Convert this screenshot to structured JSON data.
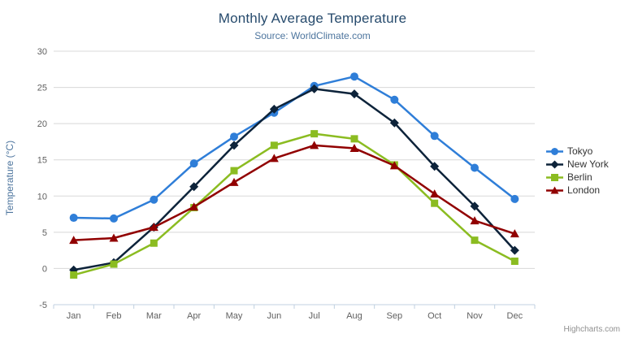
{
  "chart_data": {
    "type": "line",
    "title": "Monthly Average Temperature",
    "subtitle": "Source: WorldClimate.com",
    "xlabel": "",
    "ylabel": "Temperature (°C)",
    "categories": [
      "Jan",
      "Feb",
      "Mar",
      "Apr",
      "May",
      "Jun",
      "Jul",
      "Aug",
      "Sep",
      "Oct",
      "Nov",
      "Dec"
    ],
    "ylim": [
      -5,
      30
    ],
    "yticks": [
      -5,
      0,
      5,
      10,
      15,
      20,
      25,
      30
    ],
    "grid": true,
    "legend_position": "right",
    "series": [
      {
        "name": "Tokyo",
        "color": "#2f7ed8",
        "marker": "circle",
        "values": [
          7.0,
          6.9,
          9.5,
          14.5,
          18.2,
          21.5,
          25.2,
          26.5,
          23.3,
          18.3,
          13.9,
          9.6
        ]
      },
      {
        "name": "New York",
        "color": "#0d233a",
        "marker": "diamond",
        "values": [
          -0.2,
          0.8,
          5.7,
          11.3,
          17.0,
          22.0,
          24.8,
          24.1,
          20.1,
          14.1,
          8.6,
          2.5
        ]
      },
      {
        "name": "Berlin",
        "color": "#8bbc21",
        "marker": "square",
        "values": [
          -0.9,
          0.6,
          3.5,
          8.4,
          13.5,
          17.0,
          18.6,
          17.9,
          14.3,
          9.0,
          3.9,
          1.0
        ]
      },
      {
        "name": "London",
        "color": "#910000",
        "marker": "triangle",
        "values": [
          3.9,
          4.2,
          5.7,
          8.5,
          11.9,
          15.2,
          17.0,
          16.6,
          14.2,
          10.3,
          6.6,
          4.8
        ]
      }
    ],
    "colors": {
      "gridline": "#d8d8d8",
      "axis_line": "#c0d0e0",
      "axis_label": "#606060",
      "title": "#274b6d",
      "subtitle": "#4d759e",
      "legend_text": "#333333"
    }
  },
  "context_menu": {
    "icon": "hamburger-menu"
  },
  "credits": {
    "label": "Highcharts.com"
  }
}
